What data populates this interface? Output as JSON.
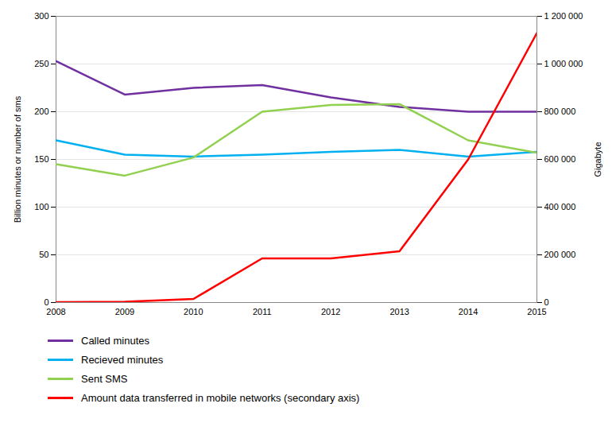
{
  "chart_data": {
    "type": "line",
    "x": [
      2008,
      2009,
      2010,
      2011,
      2012,
      2013,
      2014,
      2015
    ],
    "xlim": [
      2008,
      2015
    ],
    "xticks": [
      2008,
      2009,
      2010,
      2011,
      2012,
      2013,
      2014,
      2015
    ],
    "ylabel": "Billion minutes or number of sms",
    "ylim": [
      0,
      300
    ],
    "yticks": [
      0,
      50,
      100,
      150,
      200,
      250,
      300
    ],
    "y2label": "Gigabyte",
    "y2lim": [
      0,
      1200000
    ],
    "y2ticks": [
      0,
      {
        "value": 200000,
        "label": "200 000"
      },
      {
        "value": 400000,
        "label": "400 000"
      },
      {
        "value": 600000,
        "label": "600 000"
      },
      {
        "value": 800000,
        "label": "800 000"
      },
      {
        "value": 1000000,
        "label": "1 000 000"
      },
      {
        "value": 1200000,
        "label": "1 200 000"
      }
    ],
    "grid": true,
    "legend": "bottom",
    "series": [
      {
        "name": "Called minutes",
        "color": "#7030A0",
        "values": [
          253,
          218,
          225,
          228,
          215,
          205,
          200,
          200
        ]
      },
      {
        "name": "Recieved minutes",
        "color": "#00B0F0",
        "values": [
          170,
          155,
          153,
          155,
          158,
          160,
          153,
          158
        ]
      },
      {
        "name": "Sent SMS",
        "color": "#92D050",
        "values": [
          145,
          133,
          152,
          200,
          207,
          208,
          170,
          157
        ]
      },
      {
        "name": "Amount data transferred in mobile networks (secondary axis)",
        "color": "#FF0000",
        "axis": "y2",
        "values": [
          2000,
          3000,
          15000,
          185000,
          185000,
          215000,
          600000,
          1130000
        ]
      }
    ]
  }
}
